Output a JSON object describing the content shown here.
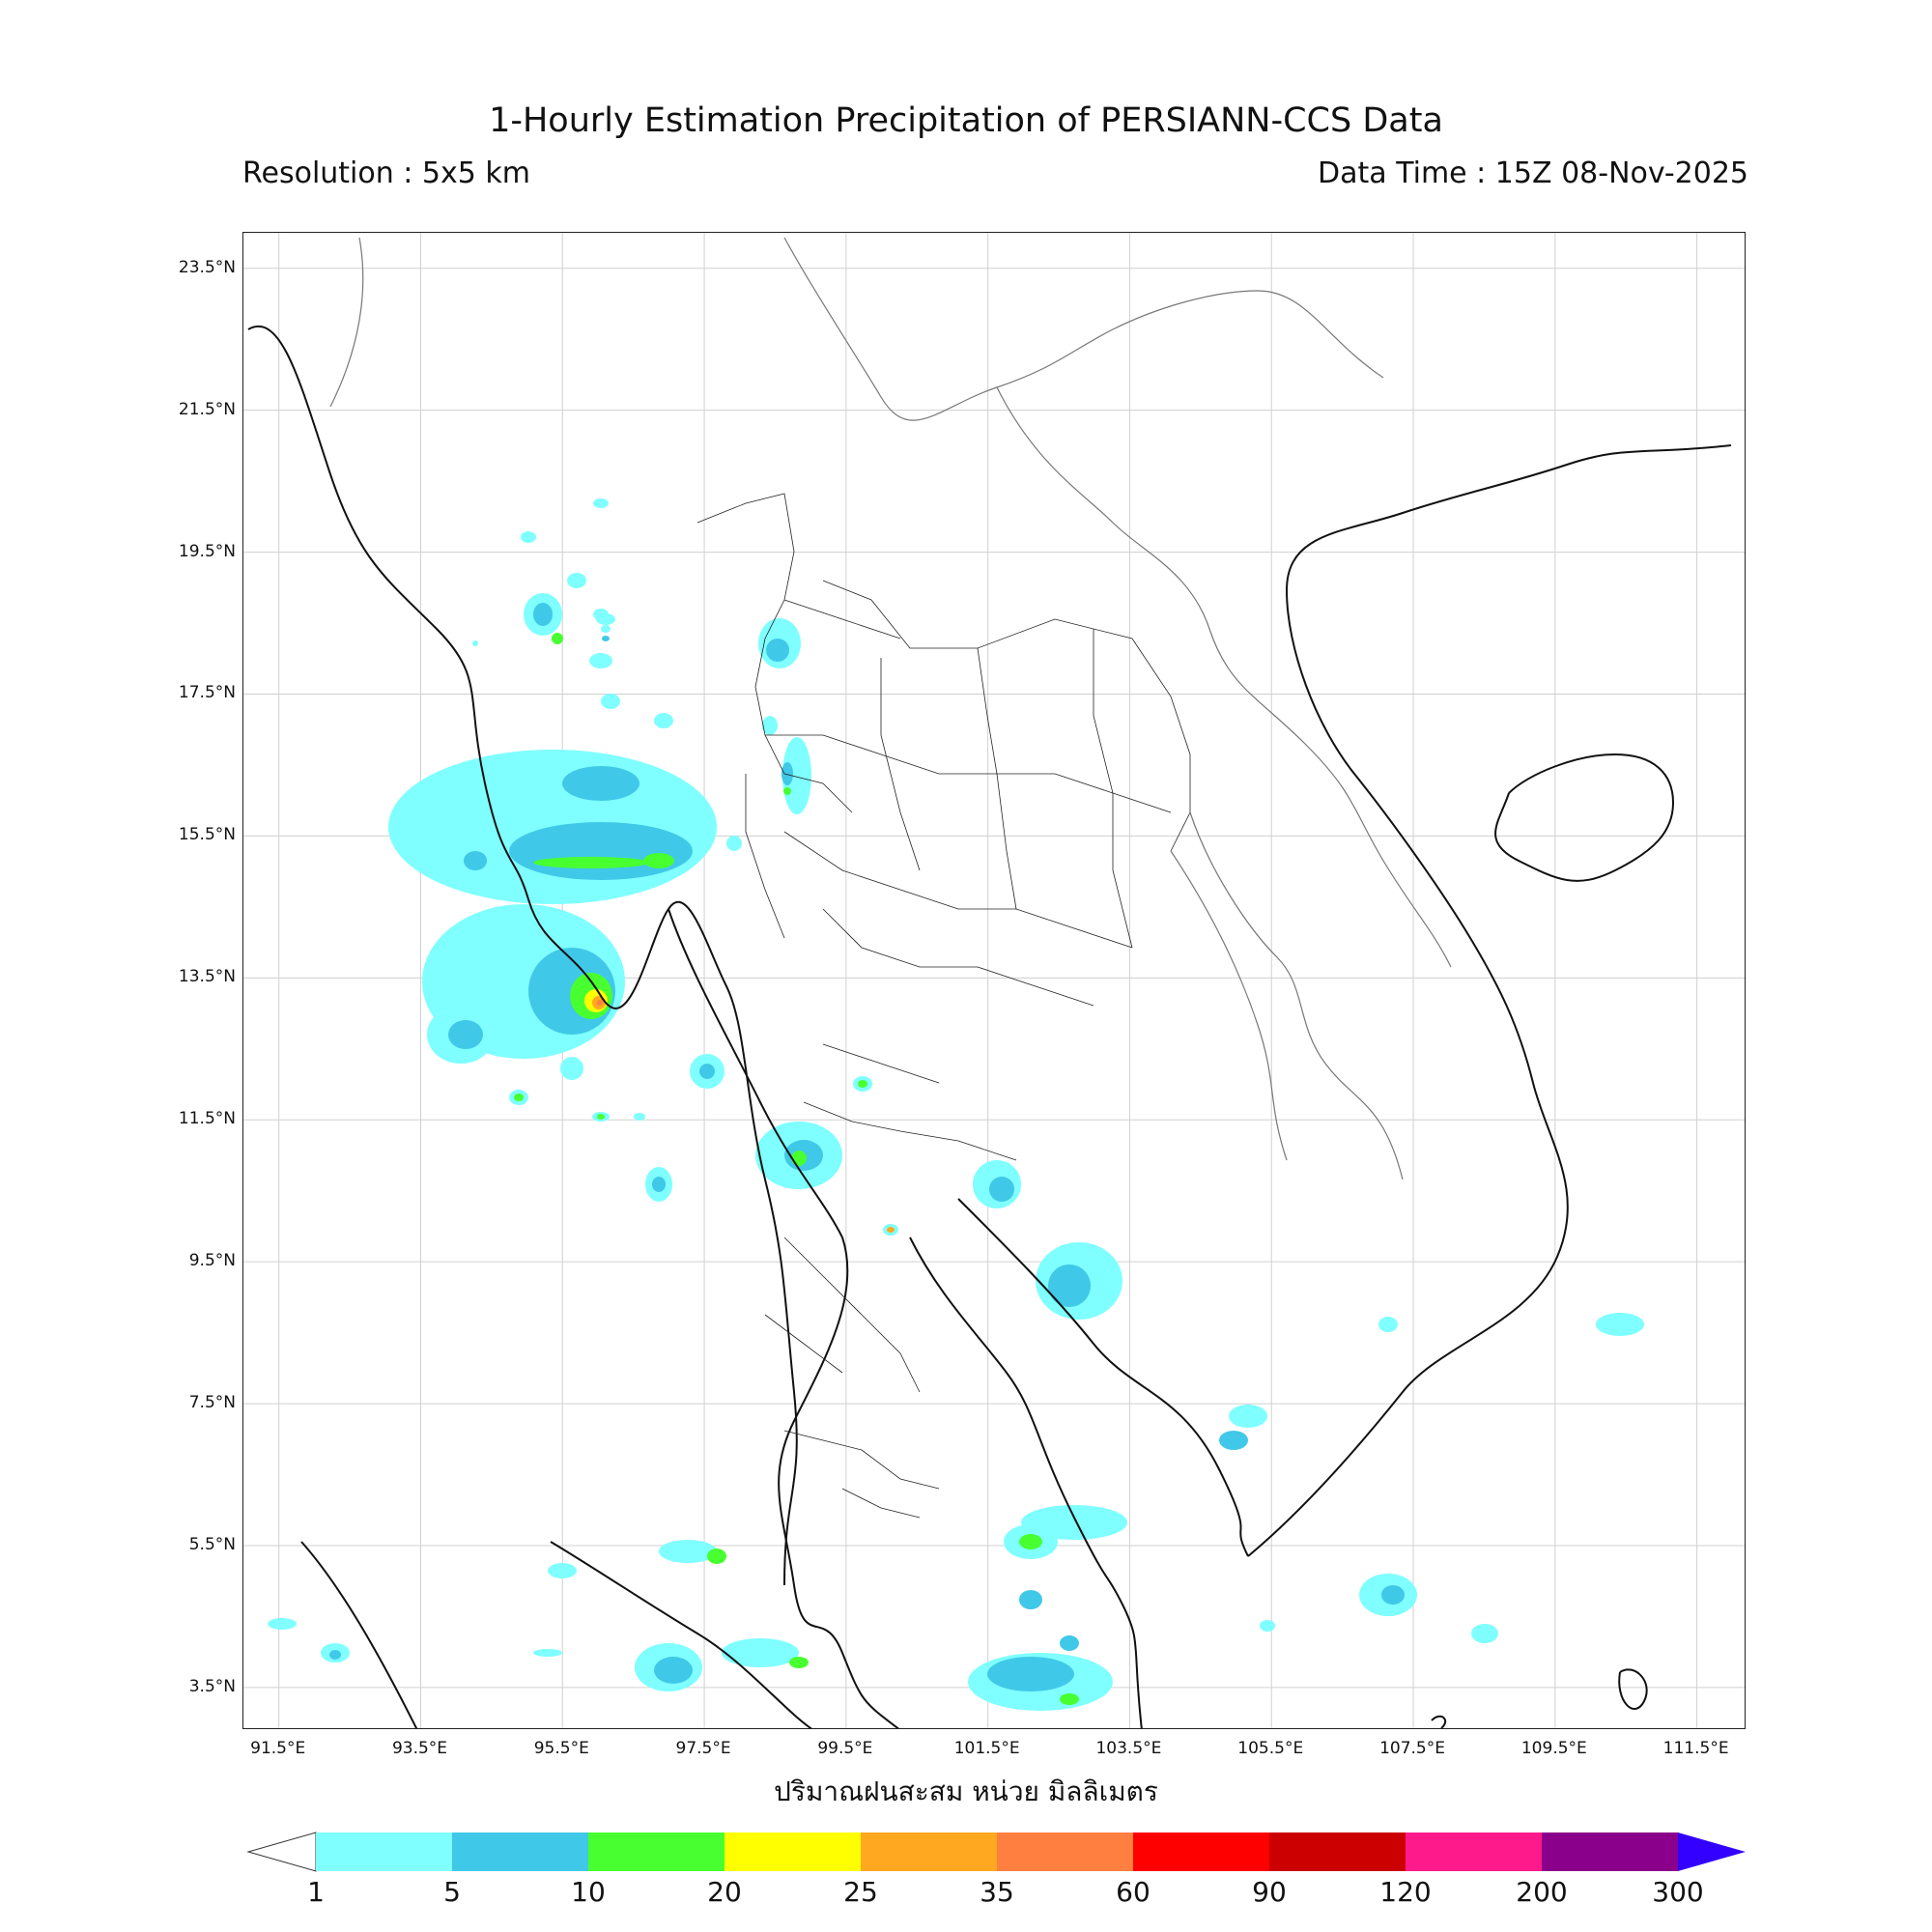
{
  "title": "1-Hourly Estimation Precipitation of PERSIANN-CCS Data",
  "resolution": "Resolution : 5x5 km",
  "data_time": "Data Time : 15Z 08-Nov-2025",
  "xlabel": "ปริมาณฝนสะสม หน่วย มิลลิเมตร",
  "lat_ticks": [
    "23.5°N",
    "21.5°N",
    "19.5°N",
    "17.5°N",
    "15.5°N",
    "13.5°N",
    "11.5°N",
    "9.5°N",
    "7.5°N",
    "5.5°N",
    "3.5°N"
  ],
  "lon_ticks": [
    "91.5°E",
    "93.5°E",
    "95.5°E",
    "97.5°E",
    "99.5°E",
    "101.5°E",
    "103.5°E",
    "105.5°E",
    "107.5°E",
    "109.5°E",
    "111.5°E"
  ],
  "colorbar": {
    "ticks": [
      "1",
      "5",
      "10",
      "20",
      "25",
      "35",
      "60",
      "90",
      "120",
      "200",
      "300"
    ],
    "colors": [
      "#7fffff",
      "#40c8e8",
      "#48ff30",
      "#ffff00",
      "#ffa820",
      "#ff7f40",
      "#ff0000",
      "#cc0000",
      "#ff1a8c",
      "#8b008b"
    ],
    "over_color": "#3300ff",
    "under_color": "#ffffff"
  },
  "map_extent": {
    "lon_min": 91.0,
    "lon_max": 112.2,
    "lat_min": 2.9,
    "lat_max": 24.0
  }
}
